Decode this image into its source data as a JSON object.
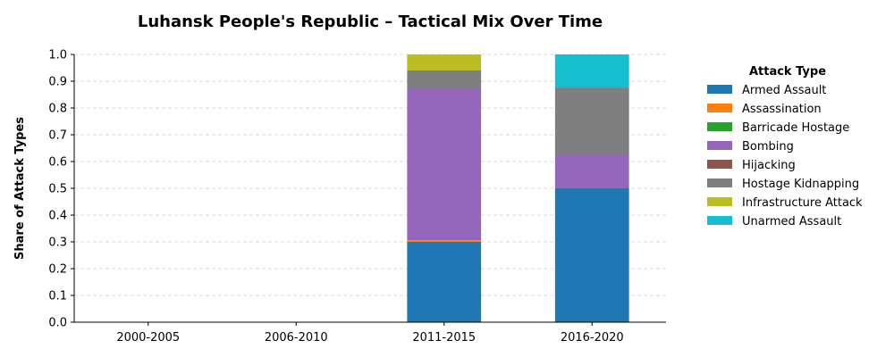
{
  "chart_data": {
    "type": "bar",
    "stacked": true,
    "title": "Luhansk People's Republic – Tactical Mix Over Time",
    "xlabel": "",
    "ylabel": "Share of Attack Types",
    "ylim": [
      0,
      1
    ],
    "yticks": [
      "0.0",
      "0.1",
      "0.2",
      "0.3",
      "0.4",
      "0.5",
      "0.6",
      "0.7",
      "0.8",
      "0.9",
      "1.0"
    ],
    "grid": "horizontal dashed",
    "legend_title": "Attack Type",
    "legend_placement": "right, outside plot",
    "categories": [
      "2000-2005",
      "2006-2010",
      "2011-2015",
      "2016-2020"
    ],
    "series": [
      {
        "name": "Armed Assault",
        "color": "#1f77b4",
        "values": [
          0,
          0,
          0.3,
          0.5
        ]
      },
      {
        "name": "Assassination",
        "color": "#ff7f0e",
        "values": [
          0,
          0,
          0.006,
          0
        ]
      },
      {
        "name": "Barricade Hostage",
        "color": "#2ca02c",
        "values": [
          0,
          0,
          0,
          0
        ]
      },
      {
        "name": "Bombing",
        "color": "#9467bd",
        "values": [
          0,
          0,
          0.564,
          0.125
        ]
      },
      {
        "name": "Hijacking",
        "color": "#8c564b",
        "values": [
          0,
          0,
          0,
          0
        ]
      },
      {
        "name": "Hostage Kidnapping",
        "color": "#7f7f7f",
        "values": [
          0,
          0,
          0.07,
          0.25
        ]
      },
      {
        "name": "Infrastructure Attack",
        "color": "#bcbd22",
        "values": [
          0,
          0,
          0.06,
          0
        ]
      },
      {
        "name": "Unarmed Assault",
        "color": "#17becf",
        "values": [
          0,
          0,
          0,
          0.125
        ]
      }
    ]
  }
}
